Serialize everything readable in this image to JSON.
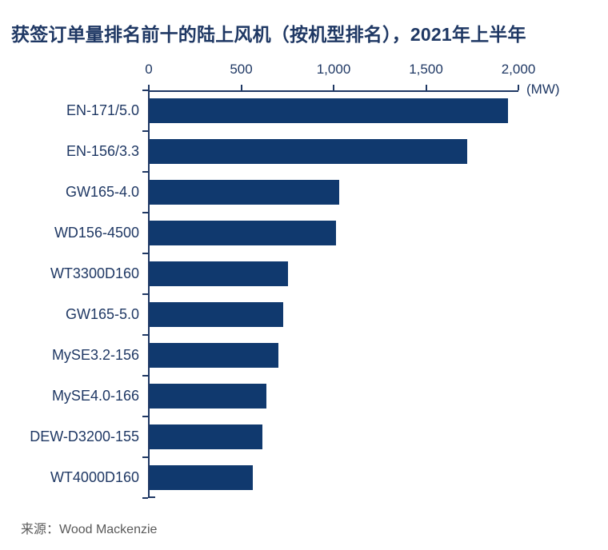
{
  "title": "获签订单量排名前十的陆上风机（按机型排名），2021年上半年",
  "source": "来源：Wood Mackenzie",
  "chart_data": {
    "type": "bar",
    "orientation": "horizontal",
    "title": "获签订单量排名前十的陆上风机（按机型排名），2021年上半年",
    "xlabel": "",
    "ylabel": "",
    "unit_label": "(MW)",
    "categories": [
      "EN-171/5.0",
      "EN-156/3.3",
      "GW165-4.0",
      "WD156-4500",
      "WT3300D160",
      "GW165-5.0",
      "MySE3.2-156",
      "MySE4.0-166",
      "DEW-D3200-155",
      "WT4000D160"
    ],
    "values": [
      1940,
      1720,
      1025,
      1010,
      750,
      725,
      695,
      630,
      610,
      560
    ],
    "x_ticks": [
      0,
      500,
      1000,
      1500,
      2000
    ],
    "x_tick_labels": [
      "0",
      "500",
      "1,000",
      "1,500",
      "2,000"
    ],
    "xlim": [
      0,
      2000
    ],
    "grid": false,
    "legend": false,
    "axis_position": "top",
    "bar_color": "#10396E",
    "text_color": "#1F3864",
    "source_color": "#595959",
    "background_color": "#FFFFFF"
  }
}
